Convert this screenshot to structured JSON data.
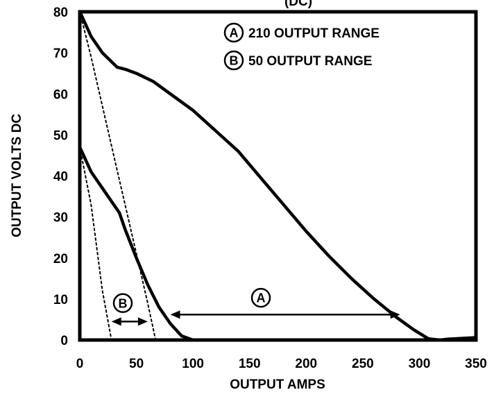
{
  "chart_data": {
    "type": "line",
    "title_fragment": "(DC)",
    "xlabel": "OUTPUT AMPS",
    "ylabel": "OUTPUT VOLTS DC",
    "xlim": [
      0,
      350
    ],
    "ylim": [
      0,
      80
    ],
    "x_ticks": [
      "0",
      "50",
      "100",
      "150",
      "200",
      "250",
      "300",
      "350"
    ],
    "y_ticks": [
      "0",
      "10",
      "20",
      "30",
      "40",
      "50",
      "60",
      "70",
      "80"
    ],
    "grid": false,
    "legend_position": "top-right",
    "legend": [
      {
        "marker": "A",
        "label": "210 OUTPUT RANGE"
      },
      {
        "marker": "B",
        "label": "50 OUTPUT RANGE"
      }
    ],
    "series": [
      {
        "style": "solid",
        "x": [
          0,
          5,
          10,
          20,
          33,
          40,
          50,
          65,
          80,
          100,
          120,
          140,
          160,
          180,
          200,
          220,
          240,
          260,
          280,
          295,
          308,
          318,
          325,
          350
        ],
        "y": [
          80,
          77,
          74,
          70,
          66.5,
          66,
          65,
          63,
          60,
          56,
          51,
          46,
          39.5,
          33,
          26.5,
          20.5,
          15,
          10,
          5.5,
          2.5,
          0.3,
          0,
          0.2,
          0.6
        ]
      },
      {
        "style": "solid",
        "x": [
          0,
          10,
          20,
          30,
          35,
          40,
          50,
          60,
          70,
          80,
          90,
          100
        ],
        "y": [
          47,
          41,
          37,
          33,
          31,
          27,
          20,
          13.5,
          8,
          4,
          1,
          0
        ]
      },
      {
        "style": "dotted",
        "x": [
          0,
          10,
          20,
          30,
          40,
          50,
          60,
          67
        ],
        "y": [
          80,
          69,
          57,
          45,
          33,
          21,
          9,
          0
        ]
      },
      {
        "style": "dotted",
        "x": [
          0,
          10,
          20,
          28
        ],
        "y": [
          47,
          33,
          12,
          0
        ]
      }
    ],
    "annotations": [
      {
        "letter": "A",
        "arrow_from_x": 80,
        "arrow_to_x": 283,
        "arrow_y": 6.2,
        "label_x": 160,
        "label_y": 10.3
      },
      {
        "letter": "B",
        "arrow_from_x": 28,
        "arrow_to_x": 60,
        "arrow_y": 4.5,
        "label_x": 38,
        "label_y": 9
      }
    ]
  }
}
